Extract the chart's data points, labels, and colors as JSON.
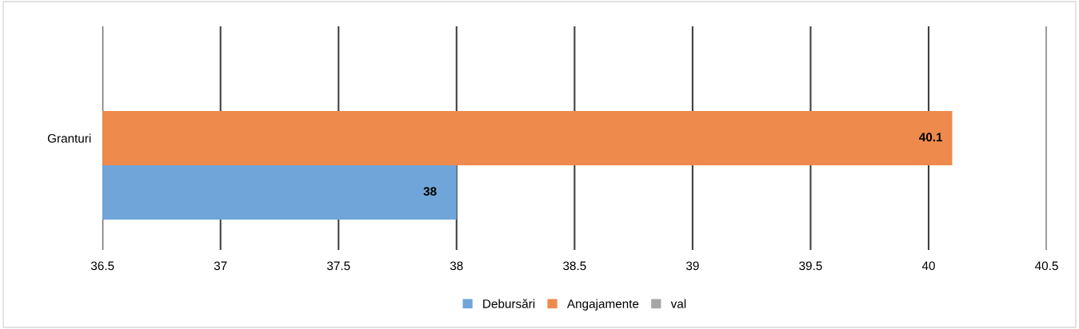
{
  "chart_data": {
    "type": "bar",
    "orientation": "horizontal",
    "categories": [
      "Granturi"
    ],
    "series": [
      {
        "name": "Debursări",
        "color": "#6fa5d9",
        "values": [
          38
        ]
      },
      {
        "name": "Angajamente",
        "color": "#ed8a4c",
        "values": [
          40.1
        ]
      },
      {
        "name": "val",
        "color": "#a5a5a5",
        "values": [
          null
        ]
      }
    ],
    "xlim": [
      36.5,
      40.5
    ],
    "xticks": [
      36.5,
      37,
      37.5,
      38,
      38.5,
      39,
      39.5,
      40,
      40.5
    ],
    "grid": "x",
    "legend": "bottom",
    "data_labels": true
  }
}
